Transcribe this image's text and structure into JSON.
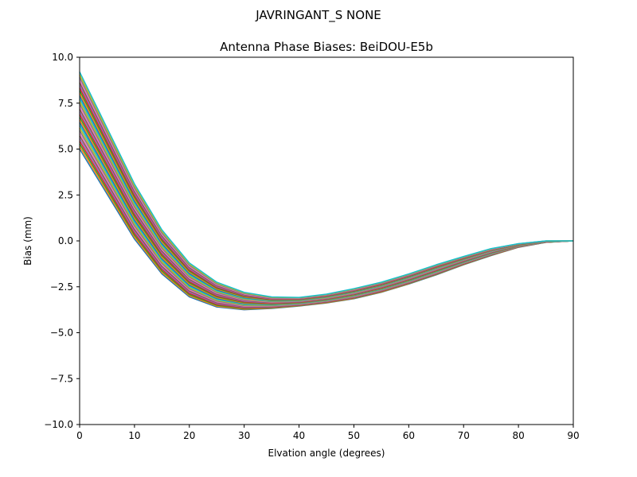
{
  "figure": {
    "suptitle": "JAVRINGANT_S    NONE"
  },
  "chart_data": {
    "type": "line",
    "title": "Antenna Phase Biases: BeiDOU-E5b",
    "xlabel": "Elvation angle (degrees)",
    "ylabel": "Bias (mm)",
    "xlim": [
      0,
      90
    ],
    "ylim": [
      -10,
      10
    ],
    "x_ticks": [
      0,
      10,
      20,
      30,
      40,
      50,
      60,
      70,
      80,
      90
    ],
    "x_tick_labels": [
      "0",
      "10",
      "20",
      "30",
      "40",
      "50",
      "60",
      "70",
      "80",
      "90"
    ],
    "y_ticks": [
      -10,
      -7.5,
      -5,
      -2.5,
      0,
      2.5,
      5,
      7.5,
      10
    ],
    "y_tick_labels": [
      "−10.0",
      "−7.5",
      "−5.0",
      "−2.5",
      "0.0",
      "2.5",
      "5.0",
      "7.5",
      "10.0"
    ],
    "grid": false,
    "legend": "none",
    "x": [
      0,
      5,
      10,
      15,
      20,
      25,
      30,
      35,
      40,
      45,
      50,
      55,
      60,
      65,
      70,
      75,
      80,
      85,
      90
    ],
    "envelope": {
      "lower": [
        5.0,
        2.55,
        0.1,
        -1.8,
        -3.05,
        -3.6,
        -3.75,
        -3.68,
        -3.55,
        -3.38,
        -3.15,
        -2.8,
        -2.35,
        -1.85,
        -1.3,
        -0.8,
        -0.35,
        -0.08,
        0.0
      ],
      "upper": [
        9.2,
        6.15,
        3.1,
        0.6,
        -1.2,
        -2.25,
        -2.8,
        -3.05,
        -3.08,
        -2.9,
        -2.6,
        -2.25,
        -1.8,
        -1.3,
        -0.85,
        -0.42,
        -0.15,
        0.0,
        0.0
      ]
    },
    "series_count": 30,
    "colors": [
      "#1f77b4",
      "#ff7f0e",
      "#2ca02c",
      "#d62728",
      "#9467bd",
      "#8c564b",
      "#e377c2",
      "#7f7f7f",
      "#bcbd22",
      "#17becf"
    ]
  }
}
